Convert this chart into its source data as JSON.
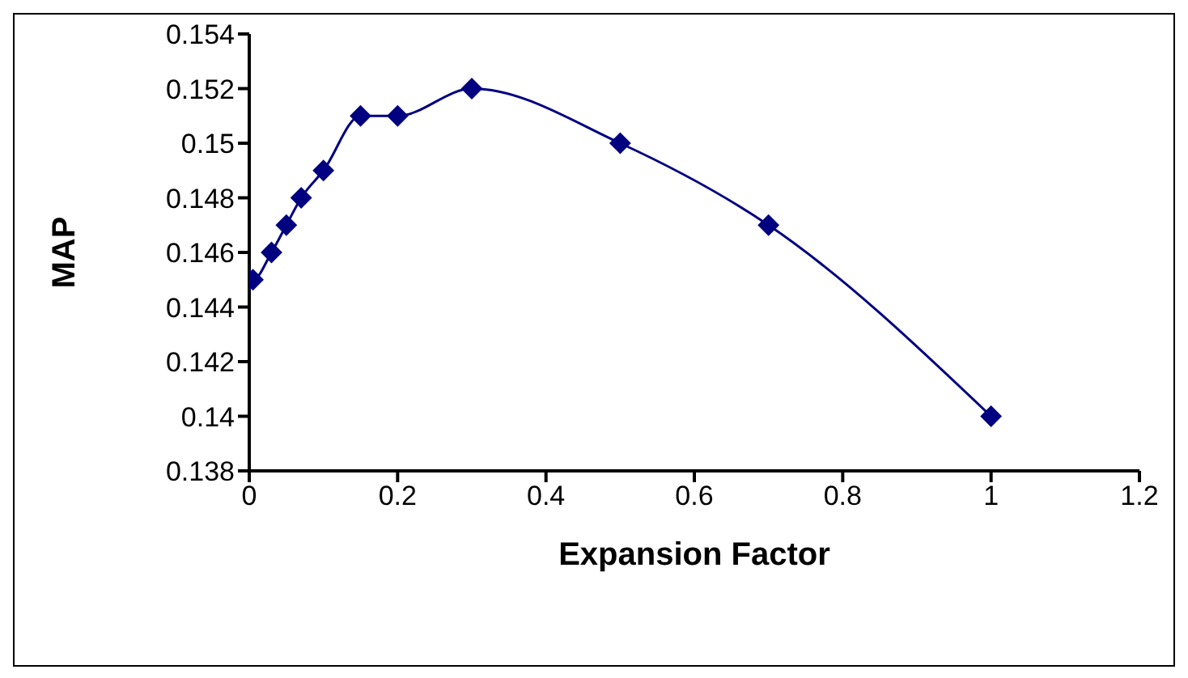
{
  "chart_data": {
    "type": "line",
    "xlabel": "Expansion Factor",
    "ylabel": "MAP",
    "x": [
      0,
      0.005,
      0.03,
      0.05,
      0.07,
      0.1,
      0.15,
      0.2,
      0.3,
      0.5,
      0.7,
      1
    ],
    "series": [
      {
        "color": "#000080",
        "values": [
          0.145,
          0.145,
          0.146,
          0.147,
          0.148,
          0.149,
          0.151,
          0.151,
          0.152,
          0.15,
          0.147,
          0.14
        ]
      }
    ],
    "xlim": [
      0,
      1.2
    ],
    "xticks": [
      0,
      0.2,
      0.4,
      0.6,
      0.8,
      1,
      1.2
    ],
    "ylim": [
      0.138,
      0.154
    ],
    "yticks": [
      0.138,
      0.14,
      0.142,
      0.144,
      0.146,
      0.148,
      0.15,
      0.152,
      0.154
    ],
    "grid": false,
    "legend": false,
    "marker": "diamond",
    "line_style": "solid"
  }
}
